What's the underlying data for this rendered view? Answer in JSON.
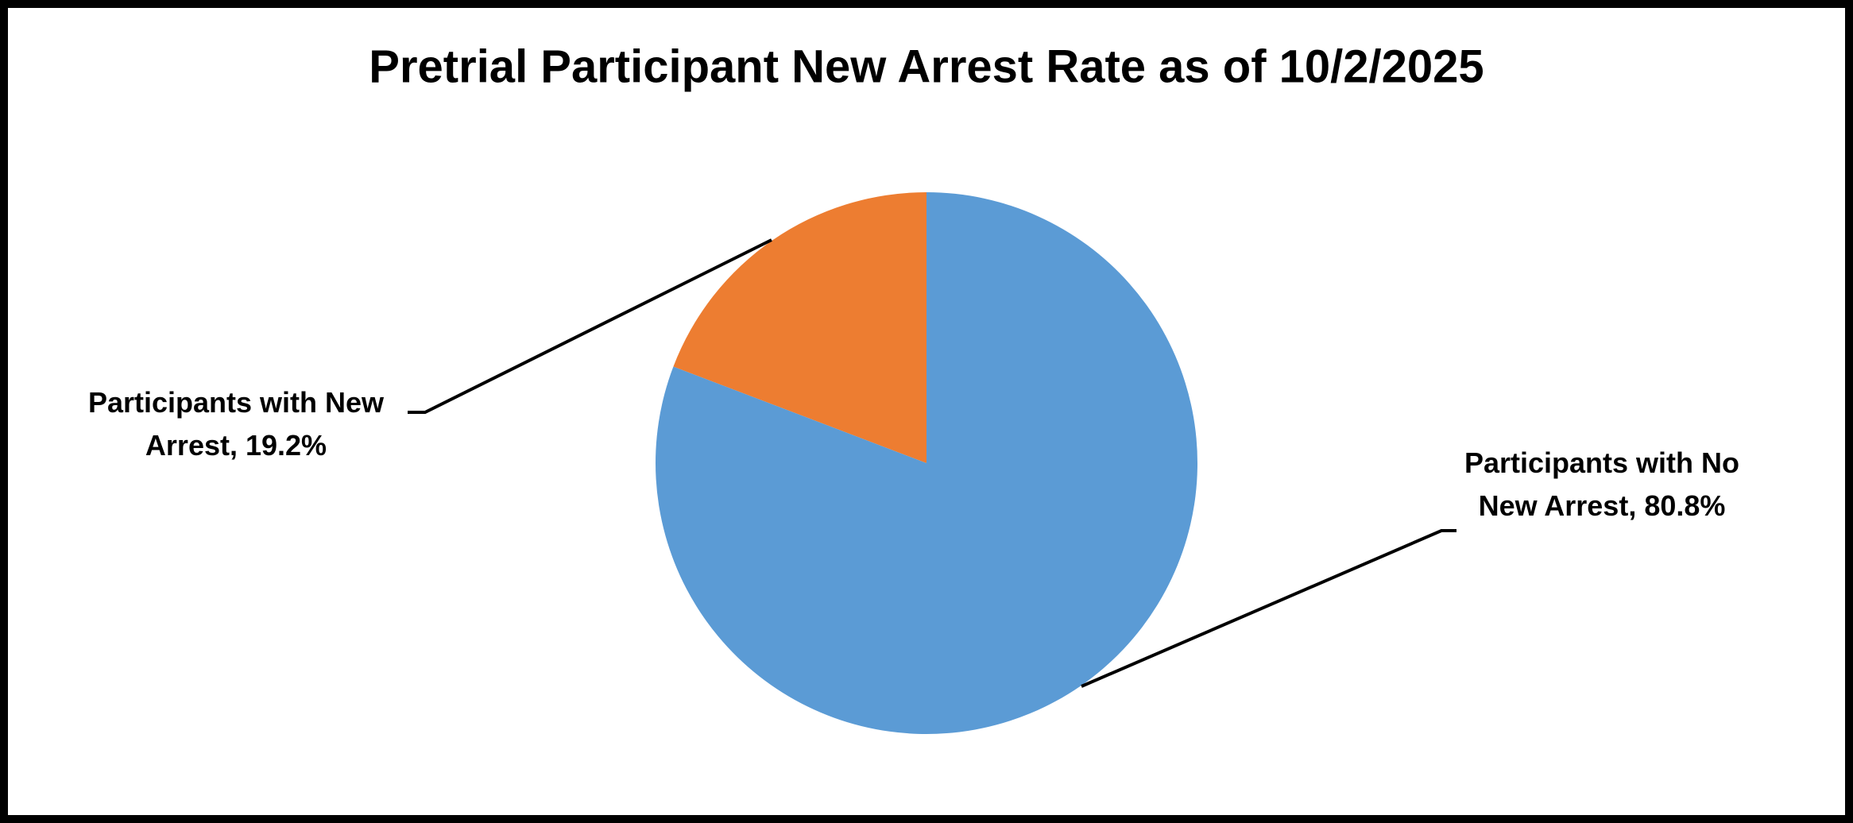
{
  "chart_data": {
    "type": "pie",
    "title": "Pretrial Participant New Arrest Rate as of 10/2/2025",
    "values": [
      80.8,
      19.2
    ],
    "value_labels": [
      "Participants with No New Arrest, 80.8%",
      "Participants with New Arrest, 19.2%"
    ],
    "colors": [
      "#5b9bd5",
      "#ed7d31"
    ]
  }
}
